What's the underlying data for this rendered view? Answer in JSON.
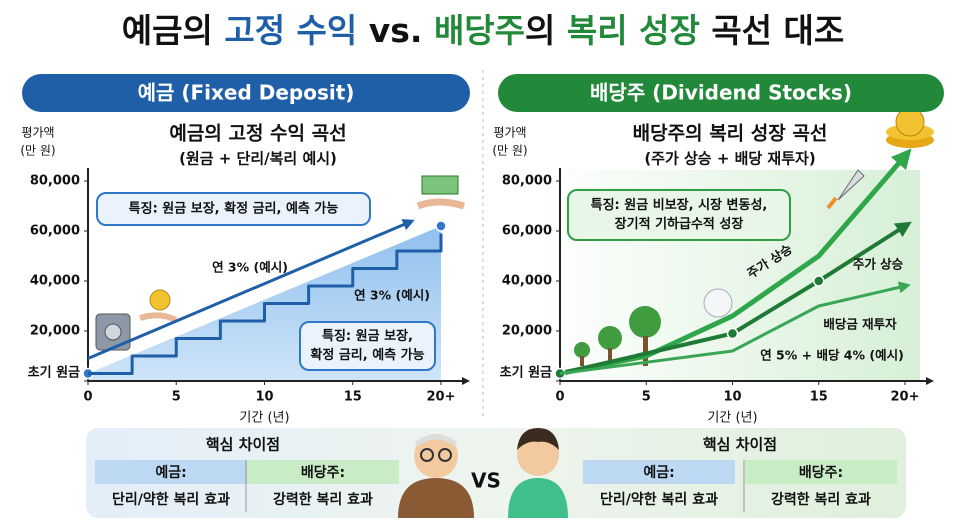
{
  "title": [
    "예금의 ",
    "고정 수익",
    " vs. ",
    "배당주",
    "의 ",
    "복리 성장",
    " 곡선 대조"
  ],
  "chart_data": [
    {
      "type": "line",
      "panel_header": "예금 (Fixed Deposit)",
      "title": "예금의 고정 수익 곡선",
      "subtitle": "(원금 + 단리/복리 예시)",
      "ylabel": [
        "평가액",
        "(만 원)"
      ],
      "xlabel": "기간 (년)",
      "color": "#1f5fa8",
      "xlim": [
        0,
        20
      ],
      "ylim": [
        0,
        90000
      ],
      "xticks": [
        0,
        5,
        10,
        15,
        {
          "value": 20,
          "label": "20+"
        }
      ],
      "yticks": [
        {
          "value": 0,
          "label": "초기 원금"
        },
        {
          "value": 20000,
          "label": "20,000"
        },
        {
          "value": 40000,
          "label": "40,000"
        },
        {
          "value": 60000,
          "label": "60,000"
        },
        {
          "value": 80000,
          "label": "80,000"
        }
      ],
      "callouts": [
        [
          "특징: 원금 보장, 확정 금리, 예측 가능"
        ],
        [
          "특징: 원금 보장,",
          "확정 금리, 예측 가능"
        ]
      ],
      "annotations": [
        "연 3% (예시)",
        "연 3% (예시)"
      ],
      "series": [
        {
          "color": "#2f78c8",
          "area": true,
          "markers": true,
          "x": [
            0,
            20
          ],
          "values": [
            3000,
            62000
          ]
        },
        {
          "color": "#1f5fa8",
          "step": true,
          "x": [
            0,
            2.5,
            5,
            7.5,
            10,
            12.5,
            15,
            17.5,
            20
          ],
          "values": [
            3000,
            10000,
            17000,
            24000,
            31000,
            38000,
            45000,
            52000,
            59000
          ]
        },
        {
          "color": "#1f5fa8",
          "arrow": true,
          "x": [
            0,
            18.2
          ],
          "values": [
            9000,
            63500
          ]
        }
      ]
    },
    {
      "type": "line",
      "panel_header": "배당주 (Dividend Stocks)",
      "title": "배당주의 복리 성장 곡선",
      "subtitle": "(주가 상승 + 배당 재투자)",
      "ylabel": [
        "평가액",
        "(만 원)"
      ],
      "xlabel": "기간 (년)",
      "color": "#22893a",
      "xlim": [
        0,
        20
      ],
      "ylim": [
        0,
        90000
      ],
      "xticks": [
        0,
        5,
        10,
        15,
        {
          "value": 20,
          "label": "20+"
        }
      ],
      "yticks": [
        {
          "value": 0,
          "label": "초기 원금"
        },
        {
          "value": 20000,
          "label": "20,000"
        },
        {
          "value": 40000,
          "label": "40,000"
        },
        {
          "value": 60000,
          "label": "60,000"
        },
        {
          "value": 80000,
          "label": "80,000"
        }
      ],
      "callouts": [
        [
          "특징: 원금 비보장, 시장 변동성,",
          "장기적 기하급수적 성장"
        ]
      ],
      "annotations": [
        "주가 상승",
        "주가 상승",
        "배당금 재투자",
        "연 5% + 배당 4% (예시)"
      ],
      "series": [
        {
          "color": "#2fa64a",
          "arrow": true,
          "x": [
            0,
            5,
            10,
            15,
            20
          ],
          "values": [
            3000,
            10000,
            26000,
            50000,
            90000
          ]
        },
        {
          "color": "#1e7a34",
          "arrow": true,
          "markers": true,
          "x": [
            0,
            10,
            15,
            20
          ],
          "values": [
            3000,
            19000,
            40000,
            62000
          ]
        },
        {
          "color": "#3aa655",
          "arrow": true,
          "x": [
            0,
            10,
            15,
            20
          ],
          "values": [
            3000,
            12000,
            30000,
            38000
          ]
        }
      ]
    }
  ],
  "comparison": [
    {
      "title": "핵심 차이점",
      "headers": [
        "예금:",
        "배당주:"
      ],
      "row": [
        "단리/약한 복리 효과",
        "강력한 복리 효과"
      ]
    },
    {
      "title": "핵심 차이점",
      "headers": [
        "예금:",
        "배당주:"
      ],
      "row": [
        "단리/약한 복리 효과",
        "강력한 복리 효과"
      ]
    }
  ],
  "vs": "VS"
}
